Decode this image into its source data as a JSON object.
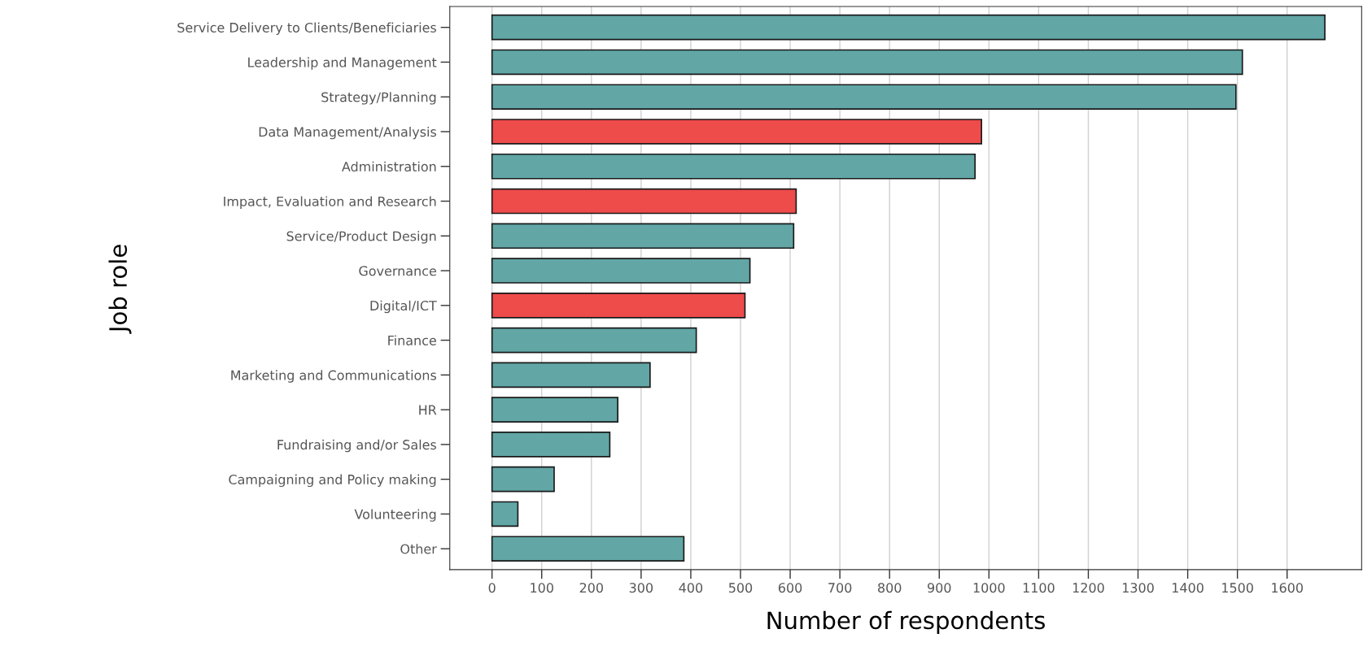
{
  "chart_data": {
    "type": "bar",
    "orientation": "horizontal",
    "xlabel": "Number of respondents",
    "ylabel": "Job role",
    "categories": [
      "Service Delivery to Clients/Beneficiaries",
      "Leadership and Management",
      "Strategy/Planning",
      "Data Management/Analysis",
      "Administration",
      "Impact, Evaluation and Research",
      "Service/Product Design",
      "Governance",
      "Digital/ICT",
      "Finance",
      "Marketing and Communications",
      "HR",
      "Fundraising and/or Sales",
      "Campaigning and Policy making",
      "Volunteering",
      "Other"
    ],
    "values": [
      1676,
      1510,
      1497,
      985,
      972,
      612,
      607,
      519,
      509,
      411,
      318,
      253,
      237,
      125,
      52,
      386
    ],
    "colors": [
      "#62a6a6",
      "#62a6a6",
      "#62a6a6",
      "#ee4b4b",
      "#62a6a6",
      "#ee4b4b",
      "#62a6a6",
      "#62a6a6",
      "#ee4b4b",
      "#62a6a6",
      "#62a6a6",
      "#62a6a6",
      "#62a6a6",
      "#62a6a6",
      "#62a6a6",
      "#62a6a6"
    ],
    "xlim": [
      -85,
      1750
    ],
    "xticks": [
      0,
      100,
      200,
      300,
      400,
      500,
      600,
      700,
      800,
      900,
      1000,
      1100,
      1200,
      1300,
      1400,
      1500,
      1600
    ],
    "grid": "x"
  }
}
